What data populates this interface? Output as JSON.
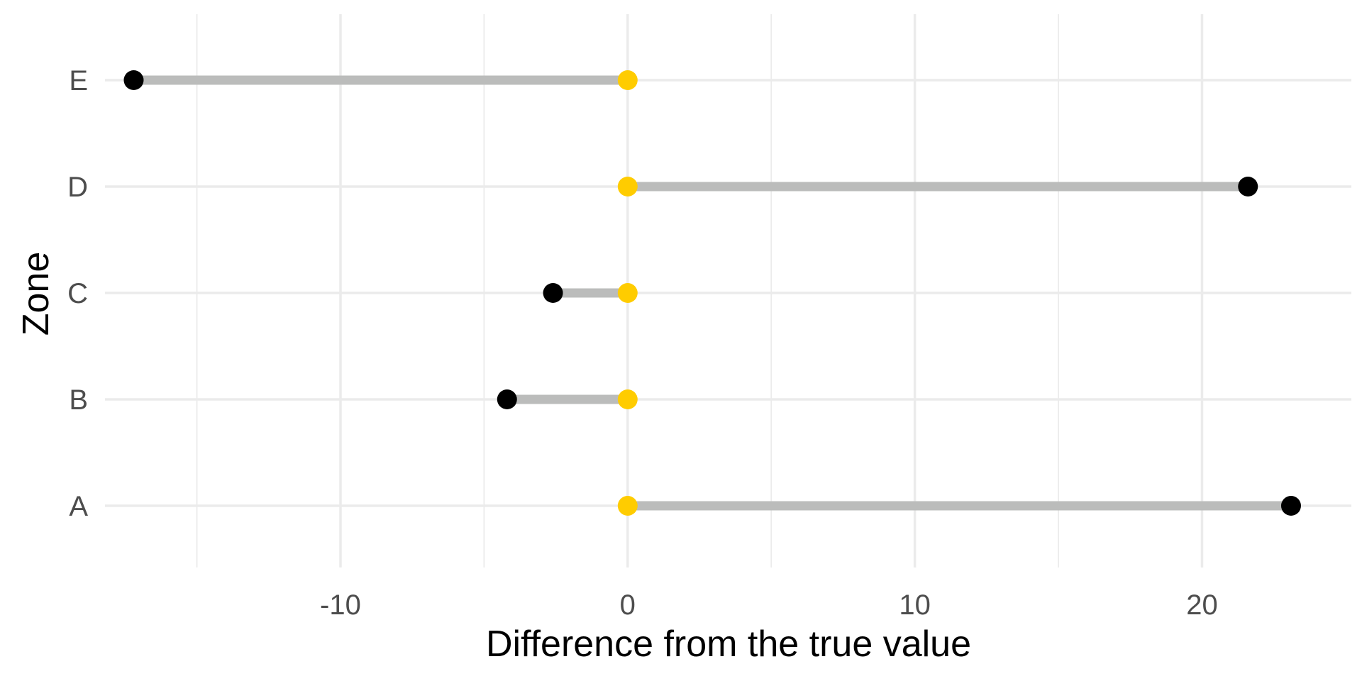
{
  "chart_data": {
    "type": "dumbbell",
    "title": "",
    "xlabel": "Difference from the true value",
    "ylabel": "Zone",
    "xlim": [
      -18.2,
      25.2
    ],
    "x_ticks": [
      -10,
      0,
      10,
      20
    ],
    "x_tick_labels": [
      "-10",
      "0",
      "10",
      "20"
    ],
    "x_minor_ticks": [
      -15,
      -5,
      5,
      15
    ],
    "categories": [
      "A",
      "B",
      "C",
      "D",
      "E"
    ],
    "series": [
      {
        "values": [
          0,
          0,
          0,
          0,
          0
        ],
        "color": "#FFCC00"
      },
      {
        "values": [
          23.1,
          -4.2,
          -2.6,
          21.6,
          -17.2
        ],
        "color": "#000000"
      }
    ],
    "segment_color": "#BBBCBB",
    "grid": true,
    "legend": "none"
  }
}
